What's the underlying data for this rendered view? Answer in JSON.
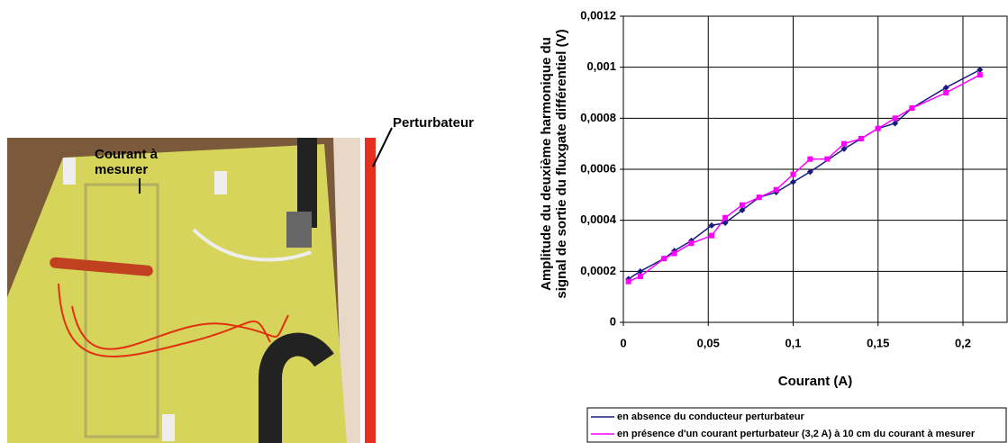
{
  "photo": {
    "label_current": "Courant à mesurer",
    "label_disturber": "Perturbateur"
  },
  "chart_data": {
    "type": "line",
    "x_label": "Courant (A)",
    "y_label": "Amplitude du deuxième harmonique du signal de sortie du fluxgate différentiel (V)",
    "xlim": [
      0,
      0.226
    ],
    "ylim": [
      0,
      0.0012
    ],
    "xticks": [
      0,
      {
        "value": 0.05,
        "label": "0,05"
      },
      {
        "value": 0.1,
        "label": "0,1"
      },
      {
        "value": 0.15,
        "label": "0,15"
      },
      {
        "value": 0.2,
        "label": "0,2"
      }
    ],
    "yticks": [
      0,
      {
        "value": 0.0002,
        "label": "0,0002"
      },
      {
        "value": 0.0004,
        "label": "0,0004"
      },
      {
        "value": 0.0006,
        "label": "0,0006"
      },
      {
        "value": 0.0008,
        "label": "0,0008"
      },
      {
        "value": 0.001,
        "label": "0,001"
      },
      {
        "value": 0.0012,
        "label": "0,0012"
      }
    ],
    "grid": true,
    "series": [
      {
        "name": "en absence du conducteur perturbateur",
        "color": "#1a1a80",
        "marker": "diamond",
        "x": [
          0.003,
          0.01,
          0.024,
          0.03,
          0.04,
          0.052,
          0.06,
          0.07,
          0.08,
          0.09,
          0.1,
          0.11,
          0.13,
          0.14,
          0.15,
          0.16,
          0.17,
          0.19,
          0.21
        ],
        "values": [
          0.00017,
          0.0002,
          0.00025,
          0.00028,
          0.00032,
          0.00038,
          0.00039,
          0.00044,
          0.00049,
          0.00051,
          0.00055,
          0.00059,
          0.00068,
          0.00072,
          0.00076,
          0.00078,
          0.00084,
          0.00092,
          0.00099
        ]
      },
      {
        "name": "en présence d'un courant perturbateur (3,2 A) à 10 cm du courant à mesurer",
        "color": "#ff00ff",
        "marker": "square",
        "x": [
          0.003,
          0.01,
          0.024,
          0.03,
          0.04,
          0.052,
          0.06,
          0.07,
          0.08,
          0.09,
          0.1,
          0.11,
          0.12,
          0.13,
          0.14,
          0.15,
          0.16,
          0.17,
          0.19,
          0.21
        ],
        "values": [
          0.00016,
          0.00018,
          0.00025,
          0.00027,
          0.00031,
          0.00034,
          0.00041,
          0.00046,
          0.00049,
          0.00052,
          0.00058,
          0.00064,
          0.00064,
          0.0007,
          0.00072,
          0.00076,
          0.0008,
          0.00084,
          0.0009,
          0.00097
        ]
      }
    ]
  }
}
